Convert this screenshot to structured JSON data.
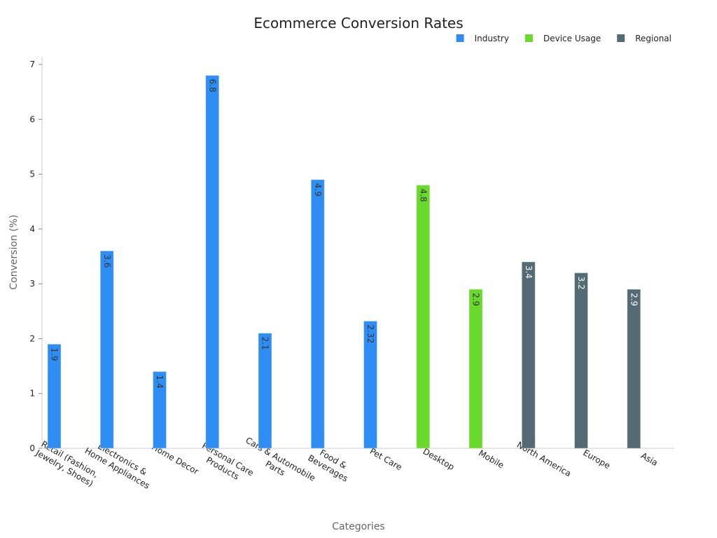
{
  "chart_data": {
    "type": "bar",
    "title": "Ecommerce Conversion Rates",
    "xlabel": "Categories",
    "ylabel": "Conversion (%)",
    "ylim": [
      0,
      7
    ],
    "yticks": [
      "0",
      "1",
      "2",
      "3",
      "4",
      "5",
      "6",
      "7"
    ],
    "grid": false,
    "legend_position": "top-right",
    "categories": [
      [
        "Retail (Fashion,",
        "Jewelry, Shoes)"
      ],
      [
        "Electronics &",
        "Home Appliances"
      ],
      [
        "Home Decor"
      ],
      [
        "Personal Care",
        "Products"
      ],
      [
        "Cars & Automobile",
        "Parts"
      ],
      [
        "Food &",
        "Beverages"
      ],
      [
        "Pet Care"
      ],
      [
        "Desktop"
      ],
      [
        "Mobile"
      ],
      [
        "North America"
      ],
      [
        "Europe"
      ],
      [
        "Asia"
      ]
    ],
    "series": [
      {
        "name": "Industry",
        "color": "#2f8ef4",
        "label_color": "#333333",
        "values": [
          1.9,
          3.6,
          1.4,
          6.8,
          2.1,
          4.9,
          2.32,
          null,
          null,
          null,
          null,
          null
        ],
        "labels": [
          "1.9",
          "3.6",
          "1.4",
          "6.8",
          "2.1",
          "4.9",
          "2.32",
          null,
          null,
          null,
          null,
          null
        ]
      },
      {
        "name": "Device Usage",
        "color": "#69d92c",
        "label_color": "#333333",
        "values": [
          null,
          null,
          null,
          null,
          null,
          null,
          null,
          4.8,
          2.9,
          null,
          null,
          null
        ],
        "labels": [
          null,
          null,
          null,
          null,
          null,
          null,
          null,
          "4.8",
          "2.9",
          null,
          null,
          null
        ]
      },
      {
        "name": "Regional",
        "color": "#546a74",
        "label_color": "#ffffff",
        "values": [
          null,
          null,
          null,
          null,
          null,
          null,
          null,
          null,
          null,
          3.4,
          3.2,
          2.9
        ],
        "labels": [
          null,
          null,
          null,
          null,
          null,
          null,
          null,
          null,
          null,
          "3.4",
          "3.2",
          "2.9"
        ]
      }
    ]
  }
}
